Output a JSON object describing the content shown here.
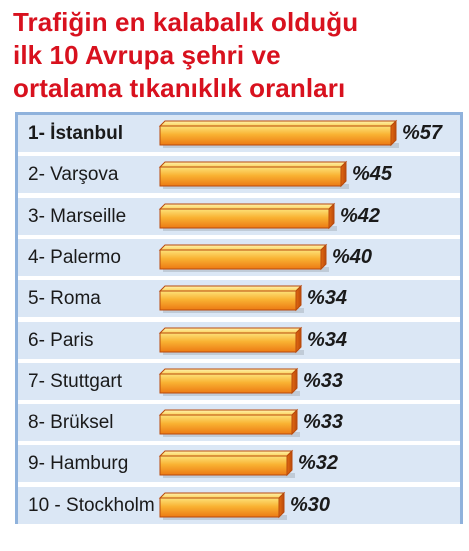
{
  "title_lines": [
    "Trafiğin en kalabalık olduğu",
    "ilk 10 Avrupa şehri ve",
    "ortalama tıkanıklık oranları"
  ],
  "colors": {
    "title": "#d8111e",
    "row_background": "#dbe7f5",
    "frame": "#8fb2dc",
    "bar_light": "#fde27a",
    "bar_mid": "#f9a321",
    "bar_dark": "#e36a10",
    "bar_edge": "#b94a0c"
  },
  "chart_data": {
    "type": "bar",
    "orientation": "horizontal",
    "categories": [
      "1- İstanbul",
      "2- Varşova",
      "3- Marseille",
      "4- Palermo",
      "5- Roma",
      "6- Paris",
      "7- Stuttgart",
      "8- Brüksel",
      "9- Hamburg",
      "10 - Stockholm"
    ],
    "values": [
      57,
      45,
      42,
      40,
      34,
      34,
      33,
      33,
      32,
      30
    ],
    "value_labels": [
      "%57",
      "%45",
      "%42",
      "%40",
      "%34",
      "%34",
      "%33",
      "%33",
      "%32",
      "%30"
    ],
    "title": "Trafiğin en kalabalık olduğu ilk 10 Avrupa şehri ve ortalama tıkanıklık oranları",
    "xlabel": "",
    "ylabel": "",
    "xlim": [
      0,
      57
    ],
    "grid": false,
    "legend": "none"
  }
}
